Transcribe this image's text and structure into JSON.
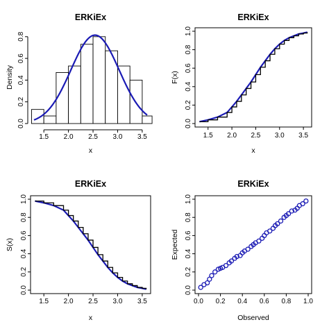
{
  "colors": {
    "fit": "#1a1ab4",
    "empirical": "#000000",
    "background": "#ffffff"
  },
  "chart_data": [
    {
      "type": "bar",
      "panel": "histogram",
      "title": "ERKiEx",
      "xlabel": "x",
      "ylabel": "Density",
      "xlim": [
        1.3,
        3.6
      ],
      "ylim": [
        0,
        0.85
      ],
      "xticks": [
        "1.5",
        "2.0",
        "2.5",
        "3.0",
        "3.5"
      ],
      "yticks": [
        "0.0",
        "0.2",
        "0.4",
        "0.6",
        "0.8"
      ],
      "bins": [
        1.25,
        1.5,
        1.75,
        2.0,
        2.25,
        2.5,
        2.75,
        3.0,
        3.25,
        3.5,
        3.75
      ],
      "values": [
        0.13,
        0.07,
        0.47,
        0.53,
        0.73,
        0.8,
        0.67,
        0.53,
        0.4,
        0.07,
        0.2
      ],
      "fit_curve": {
        "name": "fitted density",
        "mean": 2.54,
        "sd": 0.49
      }
    },
    {
      "type": "line",
      "panel": "cdf",
      "title": "ERKiEx",
      "xlabel": "x",
      "ylabel": "F(x)",
      "xlim": [
        1.3,
        3.6
      ],
      "ylim": [
        0,
        1
      ],
      "xticks": [
        "1.5",
        "2.0",
        "2.5",
        "3.0",
        "3.5"
      ],
      "yticks": [
        "0.0",
        "0.2",
        "0.4",
        "0.6",
        "0.8",
        "1.0"
      ],
      "series": [
        {
          "x": [
            1.32,
            1.5,
            1.7,
            1.9,
            2.0,
            2.1,
            2.2,
            2.3,
            2.4,
            2.5,
            2.6,
            2.7,
            2.8,
            2.9,
            3.0,
            3.1,
            3.2,
            3.3,
            3.4,
            3.5,
            3.58
          ],
          "y": [
            0.02,
            0.04,
            0.07,
            0.12,
            0.18,
            0.24,
            0.31,
            0.38,
            0.45,
            0.53,
            0.61,
            0.68,
            0.75,
            0.81,
            0.86,
            0.9,
            0.93,
            0.95,
            0.97,
            0.98,
            0.99
          ]
        }
      ]
    },
    {
      "type": "line",
      "panel": "survival",
      "title": "ERKiEx",
      "xlabel": "x",
      "ylabel": "S(x)",
      "xlim": [
        1.3,
        3.6
      ],
      "ylim": [
        0,
        1
      ],
      "xticks": [
        "1.5",
        "2.0",
        "2.5",
        "3.0",
        "3.5"
      ],
      "yticks": [
        "0.0",
        "0.2",
        "0.4",
        "0.6",
        "0.8",
        "1.0"
      ],
      "series": [
        {
          "x": [
            1.32,
            1.5,
            1.7,
            1.9,
            2.0,
            2.1,
            2.2,
            2.3,
            2.4,
            2.5,
            2.6,
            2.7,
            2.8,
            2.9,
            3.0,
            3.1,
            3.2,
            3.3,
            3.4,
            3.5,
            3.58
          ],
          "y": [
            0.98,
            0.96,
            0.93,
            0.88,
            0.82,
            0.76,
            0.69,
            0.62,
            0.55,
            0.47,
            0.39,
            0.32,
            0.25,
            0.19,
            0.14,
            0.1,
            0.07,
            0.05,
            0.03,
            0.02,
            0.01
          ]
        }
      ]
    },
    {
      "type": "scatter",
      "panel": "pp-plot",
      "title": "ERKiEx",
      "xlabel": "Observed",
      "ylabel": "Expected",
      "xlim": [
        0,
        1
      ],
      "ylim": [
        0,
        1
      ],
      "xticks": [
        "0.0",
        "0.2",
        "0.4",
        "0.6",
        "0.8",
        "1.0"
      ],
      "yticks": [
        "0.0",
        "0.2",
        "0.4",
        "0.6",
        "0.8",
        "1.0"
      ],
      "points": {
        "x": [
          0.02,
          0.05,
          0.08,
          0.1,
          0.12,
          0.15,
          0.18,
          0.2,
          0.22,
          0.25,
          0.28,
          0.3,
          0.33,
          0.35,
          0.38,
          0.4,
          0.42,
          0.45,
          0.48,
          0.5,
          0.52,
          0.55,
          0.58,
          0.6,
          0.62,
          0.65,
          0.68,
          0.7,
          0.72,
          0.75,
          0.78,
          0.8,
          0.82,
          0.85,
          0.88,
          0.9,
          0.92,
          0.95,
          0.98
        ],
        "y": [
          0.03,
          0.06,
          0.08,
          0.12,
          0.16,
          0.2,
          0.23,
          0.24,
          0.25,
          0.27,
          0.3,
          0.32,
          0.35,
          0.37,
          0.38,
          0.41,
          0.43,
          0.45,
          0.48,
          0.5,
          0.52,
          0.54,
          0.57,
          0.6,
          0.63,
          0.65,
          0.68,
          0.71,
          0.73,
          0.76,
          0.8,
          0.82,
          0.84,
          0.87,
          0.88,
          0.9,
          0.93,
          0.95,
          0.98
        ]
      }
    }
  ]
}
